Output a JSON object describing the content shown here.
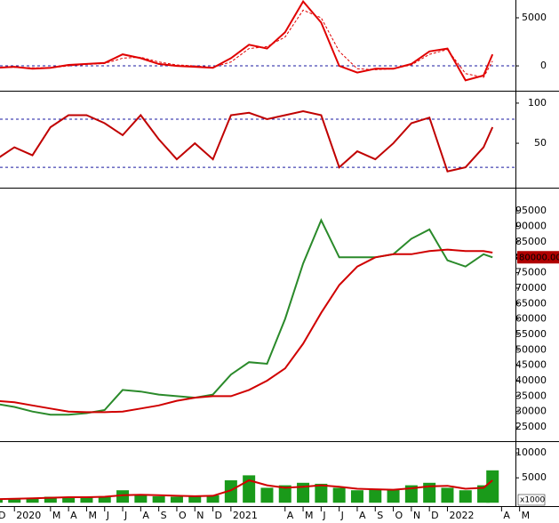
{
  "chart_data": [
    {
      "type": "line",
      "x": [
        0,
        1,
        2,
        3,
        4,
        5,
        6,
        7,
        8,
        9,
        10,
        11,
        12,
        13,
        14,
        15,
        16,
        17,
        18,
        19,
        20,
        21,
        22,
        23,
        24,
        25,
        26,
        27,
        27.5
      ],
      "xlim": [
        0.2,
        28.77
      ],
      "ylim": [
        -2400,
        6850
      ],
      "yticks": [
        0,
        5000
      ],
      "levels": [
        0
      ],
      "level_color": "#1a1aa0",
      "series": [
        {
          "color": "#e00000",
          "values": [
            -200,
            -100,
            -300,
            -200,
            100,
            200,
            300,
            1200,
            800,
            200,
            0,
            -100,
            -200,
            800,
            2200,
            1800,
            3500,
            6700,
            4500,
            0,
            -700,
            -300,
            -300,
            200,
            1500,
            1800,
            -1500,
            -1000,
            1200
          ]
        },
        {
          "color": "#e00000",
          "dash": true,
          "values": [
            -150,
            -150,
            -200,
            -200,
            0,
            150,
            250,
            800,
            900,
            400,
            100,
            0,
            -150,
            400,
            1800,
            2000,
            3000,
            5800,
            5000,
            1500,
            -300,
            -400,
            -300,
            100,
            1200,
            1700,
            -800,
            -1200,
            500
          ]
        }
      ]
    },
    {
      "type": "line",
      "x": [
        0,
        1,
        2,
        3,
        4,
        5,
        6,
        7,
        8,
        9,
        10,
        11,
        12,
        13,
        14,
        15,
        16,
        17,
        18,
        19,
        20,
        21,
        22,
        23,
        24,
        25,
        26,
        27,
        27.5
      ],
      "xlim": [
        0.2,
        28.77
      ],
      "ylim": [
        -2,
        111
      ],
      "yticks": [
        50,
        100
      ],
      "levels": [
        20,
        80
      ],
      "level_color": "#1a1aa0",
      "series": [
        {
          "color": "#c00000",
          "values": [
            30,
            45,
            35,
            70,
            85,
            85,
            75,
            60,
            85,
            55,
            30,
            50,
            30,
            85,
            88,
            80,
            85,
            90,
            85,
            20,
            40,
            30,
            50,
            75,
            82,
            15,
            20,
            45,
            70
          ]
        }
      ]
    },
    {
      "type": "line",
      "x": [
        0,
        1,
        2,
        3,
        4,
        5,
        6,
        7,
        8,
        9,
        10,
        11,
        12,
        13,
        14,
        15,
        16,
        17,
        18,
        19,
        20,
        21,
        22,
        23,
        24,
        25,
        26,
        27,
        27.5
      ],
      "xlim": [
        0.2,
        28.77
      ],
      "ylim": [
        20700,
        101400
      ],
      "yticks": [
        25000,
        30000,
        35000,
        40000,
        45000,
        50000,
        55000,
        60000,
        65000,
        70000,
        75000,
        80000,
        85000,
        90000,
        95000
      ],
      "last_label": {
        "value": 80000,
        "label": "80000.00"
      },
      "series": [
        {
          "color": "#2a8a2a",
          "values": [
            32500,
            31500,
            30000,
            29000,
            29000,
            29500,
            30500,
            37000,
            36500,
            35500,
            35000,
            34500,
            35500,
            42000,
            46000,
            45500,
            60000,
            78000,
            92000,
            80000,
            80000,
            80000,
            81000,
            86000,
            89000,
            79000,
            77000,
            81000,
            80000
          ]
        },
        {
          "color": "#d00000",
          "values": [
            33500,
            33000,
            32000,
            31000,
            30000,
            29800,
            29800,
            30000,
            31000,
            32000,
            33500,
            34500,
            35000,
            35000,
            37000,
            40000,
            44000,
            52000,
            62000,
            71000,
            77000,
            80000,
            81000,
            81000,
            82000,
            82500,
            82000,
            82000,
            81500
          ]
        }
      ]
    },
    {
      "type": "bar",
      "x": [
        0,
        1,
        2,
        3,
        4,
        5,
        6,
        7,
        8,
        9,
        10,
        11,
        12,
        13,
        14,
        15,
        16,
        17,
        18,
        19,
        20,
        21,
        22,
        23,
        24,
        25,
        26,
        27,
        27.5
      ],
      "xlim": [
        0.2,
        28.77
      ],
      "ylim": [
        -500,
        12000
      ],
      "yticks": [
        5000,
        10000
      ],
      "unit_label": "x1000",
      "xticks": [
        {
          "value": 0,
          "label": "D"
        },
        {
          "value": 1,
          "label": "2020"
        },
        {
          "value": 3,
          "label": "M"
        },
        {
          "value": 4,
          "label": "A"
        },
        {
          "value": 5,
          "label": "M"
        },
        {
          "value": 6,
          "label": "J"
        },
        {
          "value": 7,
          "label": "J"
        },
        {
          "value": 8,
          "label": "A"
        },
        {
          "value": 9,
          "label": "S"
        },
        {
          "value": 10,
          "label": "O"
        },
        {
          "value": 11,
          "label": "N"
        },
        {
          "value": 12,
          "label": "D"
        },
        {
          "value": 13,
          "label": "2021"
        },
        {
          "value": 16,
          "label": "A"
        },
        {
          "value": 17,
          "label": "M"
        },
        {
          "value": 18,
          "label": "J"
        },
        {
          "value": 19,
          "label": "J"
        },
        {
          "value": 20,
          "label": "A"
        },
        {
          "value": 21,
          "label": "S"
        },
        {
          "value": 22,
          "label": "O"
        },
        {
          "value": 23,
          "label": "N"
        },
        {
          "value": 24,
          "label": "D"
        },
        {
          "value": 25,
          "label": "2022"
        },
        {
          "value": 28,
          "label": "A"
        },
        {
          "value": 29,
          "label": "M"
        }
      ],
      "series": [
        {
          "color": "#1a9a1a",
          "values": [
            800,
            900,
            1000,
            1200,
            1100,
            1200,
            1300,
            2500,
            1500,
            1300,
            1200,
            1300,
            1500,
            4500,
            5500,
            3000,
            3500,
            4000,
            3800,
            3000,
            2500,
            2800,
            2700,
            3500,
            4000,
            3000,
            2500,
            3500,
            6500
          ]
        },
        {
          "color": "#d00000",
          "type": "line",
          "values": [
            700,
            800,
            900,
            1000,
            1100,
            1100,
            1200,
            1500,
            1600,
            1500,
            1400,
            1300,
            1400,
            2500,
            4500,
            3500,
            3000,
            3200,
            3500,
            3200,
            2800,
            2700,
            2600,
            2900,
            3300,
            3400,
            2800,
            3000,
            4500
          ]
        }
      ]
    }
  ]
}
